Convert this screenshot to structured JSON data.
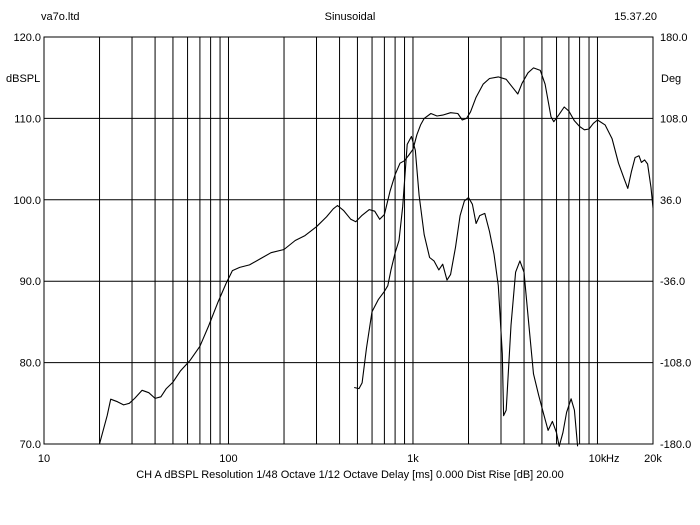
{
  "header": {
    "left": "va7o.ltd",
    "center": "Sinusoidal",
    "right": "15.37.20"
  },
  "footer": "CH A   dBSPL   Resolution 1/48 Octave   1/12 Octave   Delay [ms] 0.000   Dist Rise [dB] 20.00",
  "chart_data": {
    "type": "line",
    "title": "Sinusoidal",
    "x_scale": "log",
    "xlim": [
      10,
      20000
    ],
    "ylim": [
      70,
      120
    ],
    "y2lim": [
      -180,
      180
    ],
    "ylabel": "dBSPL",
    "y2label": "Deg",
    "xlabel_unit": "Hz",
    "grid": true,
    "x_ticks": [
      {
        "v": 10,
        "label": "10"
      },
      {
        "v": 100,
        "label": "100"
      },
      {
        "v": 1000,
        "label": "1k"
      },
      {
        "v": 10000,
        "label": "10k"
      },
      {
        "v": 20000,
        "label": "20k"
      }
    ],
    "y_ticks": [
      {
        "v": 70,
        "label": "70.0"
      },
      {
        "v": 80,
        "label": "80.0"
      },
      {
        "v": 90,
        "label": "90.0"
      },
      {
        "v": 100,
        "label": "100.0"
      },
      {
        "v": 110,
        "label": "110.0"
      },
      {
        "v": 120,
        "label": "120.0"
      }
    ],
    "y2_ticks": [
      {
        "v": -180,
        "label": "-180.0"
      },
      {
        "v": -108,
        "label": "-108.0"
      },
      {
        "v": -36,
        "label": "-36.0"
      },
      {
        "v": 36,
        "label": "36.0"
      },
      {
        "v": 108,
        "label": "108.0"
      },
      {
        "v": 180,
        "label": "180.0"
      }
    ],
    "series": [
      {
        "axis": "left",
        "color": "#000000",
        "points": [
          [
            20,
            70.0
          ],
          [
            22,
            73.5
          ],
          [
            23,
            75.5
          ],
          [
            25,
            75.2
          ],
          [
            27,
            74.8
          ],
          [
            29,
            75.0
          ],
          [
            31,
            75.6
          ],
          [
            34,
            76.6
          ],
          [
            37,
            76.3
          ],
          [
            40,
            75.6
          ],
          [
            43,
            75.8
          ],
          [
            46,
            76.8
          ],
          [
            50,
            77.6
          ],
          [
            55,
            79.0
          ],
          [
            62,
            80.3
          ],
          [
            70,
            82.0
          ],
          [
            78,
            84.5
          ],
          [
            88,
            87.5
          ],
          [
            97,
            89.7
          ],
          [
            105,
            91.3
          ],
          [
            115,
            91.7
          ],
          [
            130,
            92.0
          ],
          [
            150,
            92.8
          ],
          [
            170,
            93.5
          ],
          [
            200,
            93.9
          ],
          [
            230,
            95.0
          ],
          [
            260,
            95.6
          ],
          [
            300,
            96.7
          ],
          [
            340,
            97.9
          ],
          [
            370,
            98.9
          ],
          [
            390,
            99.3
          ],
          [
            420,
            98.7
          ],
          [
            460,
            97.6
          ],
          [
            490,
            97.3
          ],
          [
            530,
            98.1
          ],
          [
            580,
            98.8
          ],
          [
            620,
            98.6
          ],
          [
            660,
            97.6
          ],
          [
            700,
            98.2
          ],
          [
            750,
            101.0
          ],
          [
            800,
            103.1
          ],
          [
            850,
            104.5
          ],
          [
            900,
            104.8
          ],
          [
            950,
            105.5
          ],
          [
            1000,
            106.2
          ],
          [
            1050,
            108.0
          ],
          [
            1100,
            109.2
          ],
          [
            1150,
            110.0
          ],
          [
            1250,
            110.6
          ],
          [
            1350,
            110.3
          ],
          [
            1450,
            110.4
          ],
          [
            1600,
            110.7
          ],
          [
            1750,
            110.6
          ],
          [
            1850,
            109.8
          ],
          [
            1950,
            110.0
          ],
          [
            2050,
            110.8
          ],
          [
            2200,
            112.6
          ],
          [
            2400,
            114.2
          ],
          [
            2600,
            114.9
          ],
          [
            2900,
            115.1
          ],
          [
            3200,
            114.8
          ],
          [
            3500,
            113.7
          ],
          [
            3700,
            113.0
          ],
          [
            3900,
            114.3
          ],
          [
            4200,
            115.6
          ],
          [
            4500,
            116.2
          ],
          [
            4900,
            115.9
          ],
          [
            5200,
            114.2
          ],
          [
            5600,
            110.2
          ],
          [
            5800,
            109.6
          ],
          [
            6200,
            110.5
          ],
          [
            6600,
            111.4
          ],
          [
            7000,
            110.9
          ],
          [
            7500,
            109.7
          ],
          [
            8000,
            109.0
          ],
          [
            8500,
            108.6
          ],
          [
            9000,
            108.7
          ],
          [
            9500,
            109.4
          ],
          [
            10000,
            109.8
          ],
          [
            11000,
            109.2
          ],
          [
            12000,
            107.5
          ],
          [
            13000,
            104.5
          ],
          [
            14000,
            102.5
          ],
          [
            14600,
            101.4
          ],
          [
            15300,
            103.5
          ],
          [
            16000,
            105.2
          ],
          [
            16800,
            105.4
          ],
          [
            17300,
            104.6
          ],
          [
            18000,
            104.9
          ],
          [
            18700,
            104.4
          ],
          [
            19500,
            101.5
          ],
          [
            20000,
            99.0
          ]
        ]
      },
      {
        "axis": "right",
        "color": "#000000",
        "points": [
          [
            480,
            -130
          ],
          [
            510,
            -131
          ],
          [
            530,
            -126
          ],
          [
            560,
            -95
          ],
          [
            600,
            -63
          ],
          [
            650,
            -52
          ],
          [
            700,
            -45
          ],
          [
            730,
            -40
          ],
          [
            760,
            -26
          ],
          [
            800,
            -11
          ],
          [
            840,
            0
          ],
          [
            880,
            30
          ],
          [
            930,
            85
          ],
          [
            980,
            92
          ],
          [
            1030,
            80
          ],
          [
            1080,
            40
          ],
          [
            1150,
            5
          ],
          [
            1230,
            -15
          ],
          [
            1300,
            -18
          ],
          [
            1380,
            -26
          ],
          [
            1450,
            -21
          ],
          [
            1530,
            -35
          ],
          [
            1600,
            -30
          ],
          [
            1700,
            -6
          ],
          [
            1800,
            22
          ],
          [
            1900,
            35
          ],
          [
            2000,
            38
          ],
          [
            2100,
            32
          ],
          [
            2200,
            15
          ],
          [
            2300,
            22
          ],
          [
            2450,
            24
          ],
          [
            2600,
            8
          ],
          [
            2750,
            -12
          ],
          [
            2900,
            -40
          ],
          [
            3050,
            -100
          ],
          [
            3100,
            -155
          ],
          [
            3200,
            -150
          ],
          [
            3400,
            -75
          ],
          [
            3600,
            -28
          ],
          [
            3800,
            -18
          ],
          [
            4000,
            -28
          ],
          [
            4250,
            -75
          ],
          [
            4500,
            -118
          ],
          [
            4800,
            -137
          ],
          [
            5100,
            -153
          ],
          [
            5400,
            -168
          ],
          [
            5700,
            -160
          ],
          [
            6000,
            -170
          ],
          [
            6200,
            -182
          ],
          [
            6500,
            -170
          ],
          [
            6800,
            -152
          ],
          [
            7200,
            -140
          ],
          [
            7500,
            -150
          ],
          [
            7800,
            -182
          ]
        ]
      }
    ]
  }
}
